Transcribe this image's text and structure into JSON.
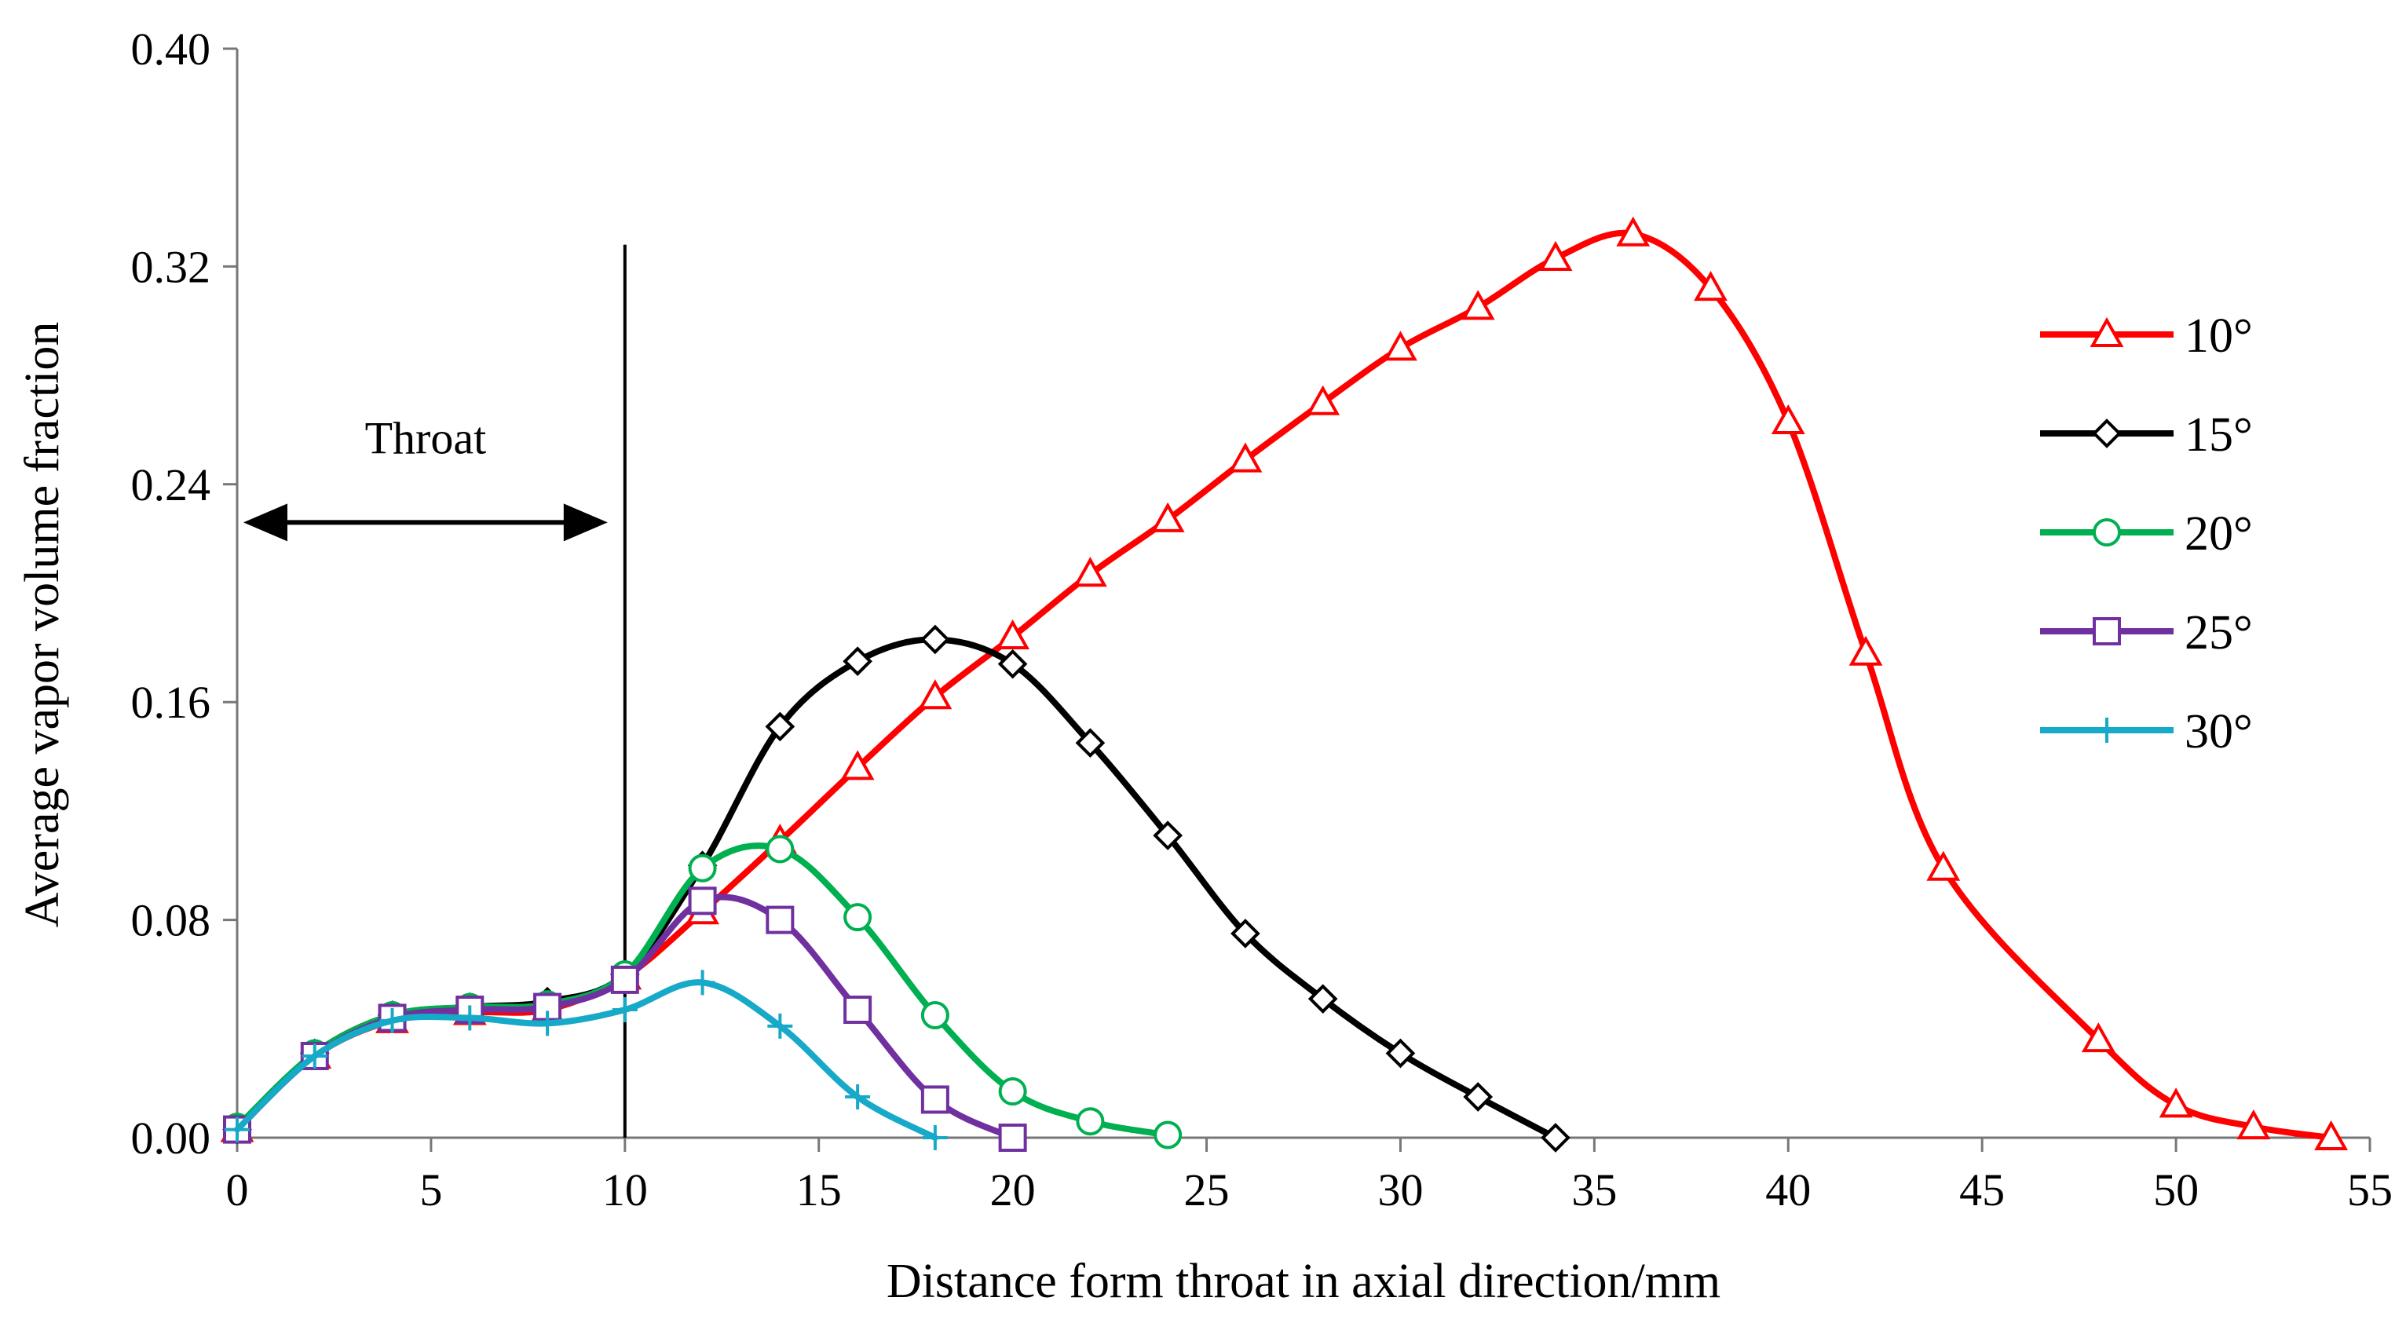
{
  "chart_data": {
    "type": "line",
    "title": "",
    "xlabel": "Distance form throat in axial direction/mm",
    "ylabel": "Average vapor volume fraction",
    "xlim": [
      0,
      55
    ],
    "ylim": [
      0,
      0.4
    ],
    "xticks": [
      0,
      5,
      10,
      15,
      20,
      25,
      30,
      35,
      40,
      45,
      50,
      55
    ],
    "yticks": [
      0,
      0.08,
      0.16,
      0.24,
      0.32,
      0.4
    ],
    "xtick_labels": [
      "0",
      "5",
      "10",
      "15",
      "20",
      "25",
      "30",
      "35",
      "40",
      "45",
      "50",
      "55"
    ],
    "ytick_labels": [
      "0.00",
      "0.08",
      "0.16",
      "0.24",
      "0.32",
      "0.40"
    ],
    "grid": false,
    "legend_position": "right",
    "annotation": {
      "label": "Throat",
      "x_start": 0,
      "x_end": 10,
      "y_arrow": 0.226,
      "vline_x": 10,
      "vline_top": 0.328
    },
    "series": [
      {
        "name": "10°",
        "color": "#ff0000",
        "marker": "triangle",
        "x": [
          0,
          2,
          4,
          6,
          8,
          10,
          12,
          14,
          16,
          18,
          20,
          22,
          24,
          26,
          28,
          30,
          32,
          34,
          36,
          38,
          40,
          42,
          44,
          48,
          50,
          52,
          54
        ],
        "y": [
          0.003,
          0.03,
          0.043,
          0.046,
          0.047,
          0.059,
          0.083,
          0.109,
          0.136,
          0.162,
          0.184,
          0.207,
          0.227,
          0.249,
          0.27,
          0.29,
          0.305,
          0.323,
          0.332,
          0.312,
          0.263,
          0.178,
          0.099,
          0.036,
          0.012,
          0.004,
          0.0
        ]
      },
      {
        "name": "15°",
        "color": "#000000",
        "marker": "diamond",
        "x": [
          0,
          2,
          4,
          6,
          8,
          10,
          12,
          14,
          16,
          18,
          20,
          22,
          24,
          26,
          28,
          30,
          32,
          34
        ],
        "y": [
          0.003,
          0.031,
          0.045,
          0.048,
          0.05,
          0.06,
          0.1,
          0.151,
          0.175,
          0.183,
          0.174,
          0.145,
          0.111,
          0.075,
          0.051,
          0.031,
          0.015,
          0.0
        ]
      },
      {
        "name": "20°",
        "color": "#00b050",
        "marker": "circle",
        "x": [
          0,
          2,
          4,
          6,
          8,
          10,
          12,
          14,
          16,
          18,
          20,
          22,
          24
        ],
        "y": [
          0.004,
          0.031,
          0.045,
          0.048,
          0.049,
          0.06,
          0.099,
          0.106,
          0.081,
          0.045,
          0.017,
          0.006,
          0.001
        ]
      },
      {
        "name": "25°",
        "color": "#7030a0",
        "marker": "square",
        "x": [
          0,
          2,
          4,
          6,
          8,
          10,
          12,
          14,
          16,
          18,
          20
        ],
        "y": [
          0.003,
          0.03,
          0.044,
          0.047,
          0.048,
          0.058,
          0.087,
          0.08,
          0.047,
          0.014,
          0.0
        ]
      },
      {
        "name": "30°",
        "color": "#17a9c8",
        "marker": "plus",
        "x": [
          0,
          2,
          4,
          6,
          8,
          10,
          12,
          14,
          16,
          18
        ],
        "y": [
          0.003,
          0.03,
          0.043,
          0.044,
          0.042,
          0.047,
          0.057,
          0.041,
          0.015,
          0.0
        ]
      }
    ]
  }
}
